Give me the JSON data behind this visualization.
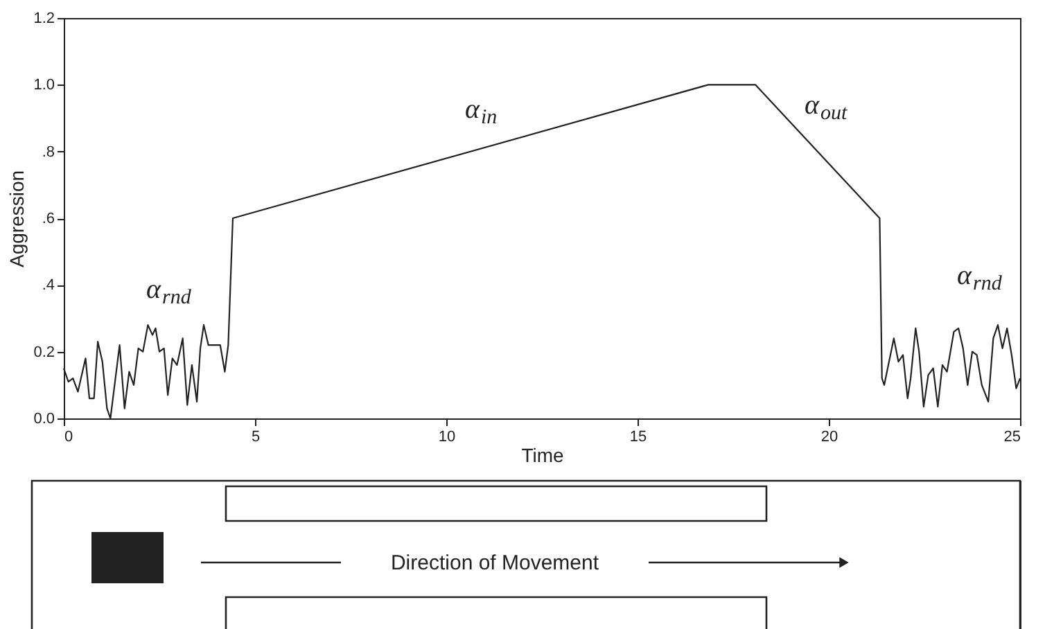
{
  "chart_data": {
    "type": "line",
    "xlabel": "Time",
    "ylabel": "Aggression",
    "xlim": [
      0,
      25
    ],
    "xticks": [
      0,
      5,
      10,
      15,
      20,
      25
    ],
    "ylim": [
      0,
      1.2
    ],
    "yticks": [
      {
        "value": 0,
        "label": "0.0"
      },
      {
        "value": 0.2,
        "label": "0.2"
      },
      {
        "value": 0.4,
        "label": ".4"
      },
      {
        "value": 0.6,
        "label": ".6"
      },
      {
        "value": 0.8,
        "label": ".8"
      },
      {
        "value": 1,
        "label": "1.0"
      },
      {
        "value": 1.2,
        "label": "1.2"
      }
    ],
    "grid": false,
    "marker": "none",
    "line_style": "solid",
    "series": [
      {
        "color": "#222222",
        "x": [
          0,
          0.12,
          0.24,
          0.37,
          0.49,
          0.57,
          0.67,
          0.79,
          0.89,
          1.01,
          1.13,
          1.22,
          1.34,
          1.46,
          1.59,
          1.71,
          1.83,
          1.95,
          2.07,
          2.2,
          2.32,
          2.4,
          2.5,
          2.62,
          2.72,
          2.84,
          2.96,
          3.11,
          3.23,
          3.35,
          3.48,
          3.57,
          3.66,
          3.78,
          4.09,
          4.21,
          4.3,
          4.42,
          16.85,
          18.08,
          21.33,
          21.39,
          21.45,
          21.7,
          21.82,
          21.94,
          22.06,
          22.14,
          22.27,
          22.36,
          22.48,
          22.6,
          22.73,
          22.85,
          22.97,
          23.09,
          23.27,
          23.39,
          23.51,
          23.63,
          23.75,
          23.87,
          24.0,
          24.17,
          24.3,
          24.42,
          24.54,
          24.66,
          24.78,
          24.9,
          25
        ],
        "values": [
          0.15,
          0.11,
          0.12,
          0.08,
          0.14,
          0.18,
          0.06,
          0.06,
          0.23,
          0.17,
          0.03,
          0,
          0.11,
          0.22,
          0.03,
          0.14,
          0.1,
          0.21,
          0.2,
          0.28,
          0.25,
          0.27,
          0.2,
          0.21,
          0.07,
          0.18,
          0.16,
          0.24,
          0.04,
          0.16,
          0.05,
          0.21,
          0.28,
          0.22,
          0.22,
          0.14,
          0.22,
          0.6,
          1,
          1,
          0.6,
          0.12,
          0.1,
          0.24,
          0.17,
          0.19,
          0.06,
          0.12,
          0.27,
          0.2,
          0.035,
          0.13,
          0.15,
          0.035,
          0.16,
          0.14,
          0.26,
          0.27,
          0.21,
          0.1,
          0.2,
          0.19,
          0.1,
          0.05,
          0.24,
          0.28,
          0.21,
          0.27,
          0.19,
          0.09,
          0.12
        ]
      }
    ],
    "annotations": [
      "α$_{rnd}$",
      "α$_{in}$",
      "α$_{out}$",
      "α$_{rnd}$",
      "Direction of Movement"
    ]
  }
}
